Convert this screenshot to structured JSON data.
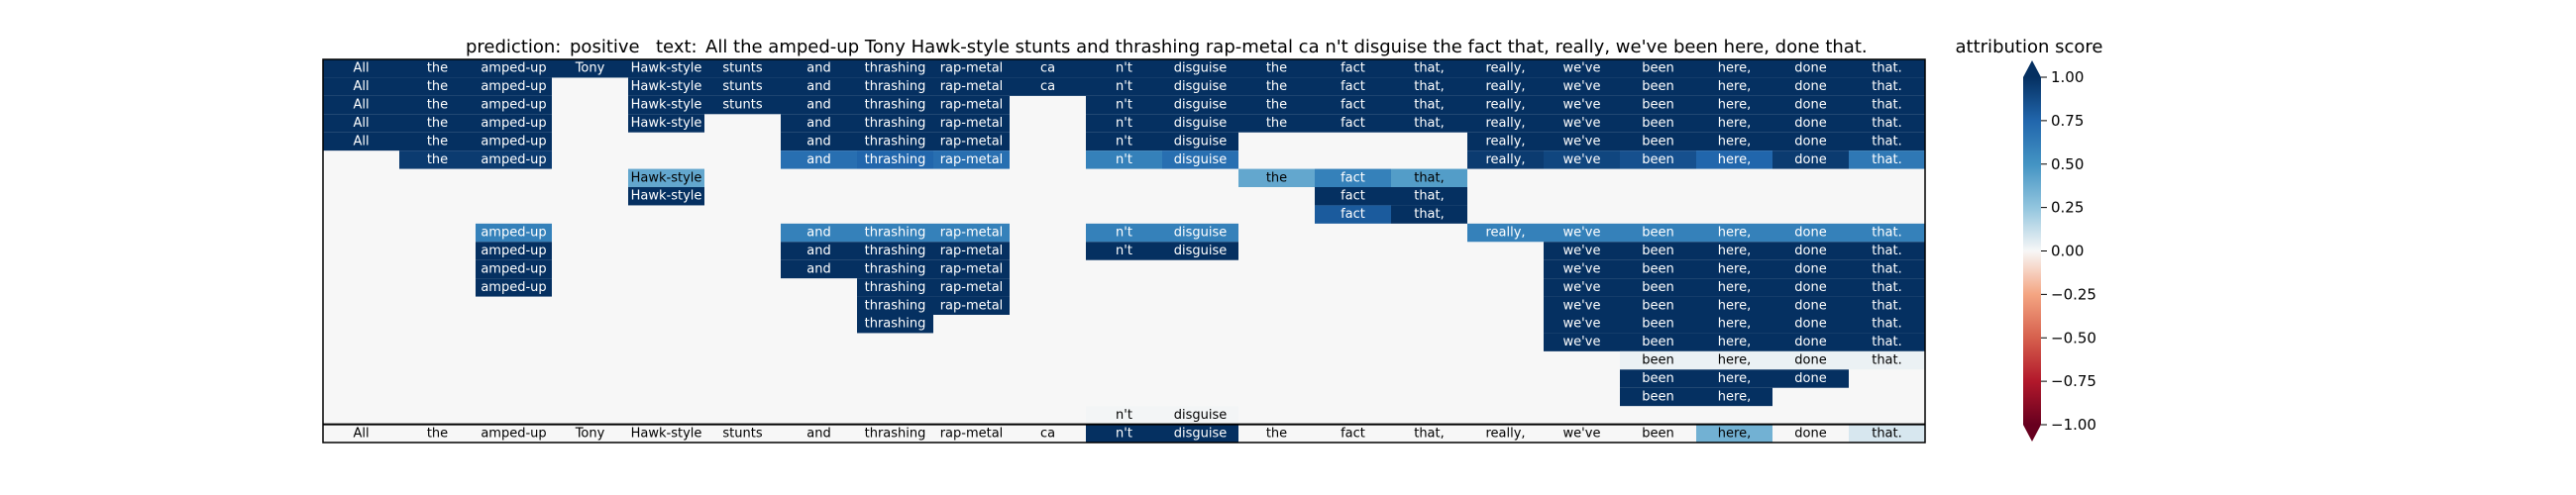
{
  "title": {
    "prediction_label": "prediction:",
    "prediction_value": "positive",
    "text_label": "text:",
    "text_value": "All the amped-up Tony Hawk-style stunts and thrashing rap-metal ca n't disguise the fact that, really, we've been here, done that."
  },
  "colorbar": {
    "label": "attribution score",
    "ticks": [
      "1.00",
      "0.75",
      "0.50",
      "0.25",
      "0.00",
      "−0.25",
      "−0.50",
      "−0.75",
      "−1.00"
    ],
    "vmin": -1,
    "vmax": 1,
    "extend": "both",
    "colormap": "RdBu"
  },
  "chart_data": {
    "type": "heatmap",
    "tokens": [
      "All",
      "the",
      "amped-up",
      "Tony",
      "Hawk-style",
      "stunts",
      "and",
      "thrashing",
      "rap-metal",
      "ca",
      "n't",
      "disguise",
      "the",
      "fact",
      "that,",
      "really,",
      "we've",
      "been",
      "here,",
      "done",
      "that."
    ],
    "rows": [
      [
        1,
        1,
        1,
        1,
        1,
        1,
        1,
        1,
        1,
        1,
        1,
        1,
        1,
        1,
        1,
        1,
        1,
        1,
        1,
        1,
        1
      ],
      [
        1,
        1,
        1,
        0,
        1,
        1,
        1,
        1,
        1,
        1,
        1,
        1,
        1,
        1,
        1,
        1,
        1,
        1,
        1,
        1,
        1
      ],
      [
        1,
        1,
        1,
        0,
        1,
        1,
        1,
        1,
        1,
        0,
        1,
        1,
        1,
        1,
        1,
        1,
        1,
        1,
        1,
        1,
        1
      ],
      [
        1,
        1,
        1,
        0,
        1,
        0,
        1,
        1,
        1,
        0,
        1,
        1,
        1,
        1,
        1,
        1,
        1,
        1,
        1,
        1,
        1
      ],
      [
        1,
        1,
        1,
        0,
        0,
        0,
        1,
        1,
        1,
        0,
        1,
        1,
        0,
        0,
        0,
        1,
        1,
        1,
        1,
        1,
        1
      ],
      [
        0,
        0.95,
        0.95,
        0,
        0,
        0,
        0.7,
        0.75,
        0.7,
        0,
        0.6,
        0.7,
        0,
        0,
        0,
        0.95,
        0.9,
        0.85,
        0.75,
        0.95,
        0.65
      ],
      [
        0,
        0,
        0,
        0,
        0.4,
        0,
        0,
        0,
        0,
        0,
        0,
        0,
        0.4,
        0.6,
        0.45,
        0,
        0,
        0,
        0,
        0,
        0
      ],
      [
        0,
        0,
        0,
        0,
        1,
        0,
        0,
        0,
        0,
        0,
        0,
        0,
        0,
        1,
        1,
        0,
        0,
        0,
        0,
        0,
        0
      ],
      [
        0,
        0,
        0,
        0,
        0,
        0,
        0,
        0,
        0,
        0,
        0,
        0,
        0,
        0.8,
        1,
        0,
        0,
        0,
        0,
        0,
        0
      ],
      [
        0,
        0,
        0.6,
        0,
        0,
        0,
        0.6,
        0.6,
        0.6,
        0,
        0.6,
        0.6,
        0,
        0,
        0,
        0.6,
        0.6,
        0.6,
        0.6,
        0.6,
        0.6
      ],
      [
        0,
        0,
        1,
        0,
        0,
        0,
        1,
        1,
        1,
        0,
        1,
        1,
        0,
        0,
        0,
        0,
        1,
        1,
        1,
        1,
        1
      ],
      [
        0,
        0,
        1,
        0,
        0,
        0,
        1,
        1,
        1,
        0,
        0,
        0,
        0,
        0,
        0,
        0,
        1,
        1,
        1,
        1,
        1
      ],
      [
        0,
        0,
        1,
        0,
        0,
        0,
        0,
        1,
        1,
        0,
        0,
        0,
        0,
        0,
        0,
        0,
        1,
        1,
        1,
        1,
        1
      ],
      [
        0,
        0,
        0,
        0,
        0,
        0,
        0,
        1,
        1,
        0,
        0,
        0,
        0,
        0,
        0,
        0,
        1,
        1,
        1,
        1,
        1
      ],
      [
        0,
        0,
        0,
        0,
        0,
        0,
        0,
        1,
        0,
        0,
        0,
        0,
        0,
        0,
        0,
        0,
        1,
        1,
        1,
        1,
        1
      ],
      [
        0,
        0,
        0,
        0,
        0,
        0,
        0,
        0,
        0,
        0,
        0,
        0,
        0,
        0,
        0,
        0,
        1,
        1,
        1,
        1,
        1
      ],
      [
        0,
        0,
        0,
        0,
        0,
        0,
        0,
        0,
        0,
        0,
        0,
        0,
        0,
        0,
        0,
        0,
        0,
        0.03,
        0.03,
        0.03,
        0.03
      ],
      [
        0,
        0,
        0,
        0,
        0,
        0,
        0,
        0,
        0,
        0,
        0,
        0,
        0,
        0,
        0,
        0,
        0,
        1,
        1,
        1,
        0
      ],
      [
        0,
        0,
        0,
        0,
        0,
        0,
        0,
        0,
        0,
        0,
        0,
        0,
        0,
        0,
        0,
        0,
        0,
        1,
        1,
        0,
        0
      ],
      [
        0,
        0,
        0,
        0,
        0,
        0,
        0,
        0,
        0,
        0,
        0.01,
        0.01,
        0,
        0,
        0,
        0,
        0,
        0,
        0,
        0,
        0
      ]
    ],
    "shown": [
      [
        1,
        1,
        1,
        1,
        1,
        1,
        1,
        1,
        1,
        1,
        1,
        1,
        1,
        1,
        1,
        1,
        1,
        1,
        1,
        1,
        1
      ],
      [
        1,
        1,
        1,
        0,
        1,
        1,
        1,
        1,
        1,
        1,
        1,
        1,
        1,
        1,
        1,
        1,
        1,
        1,
        1,
        1,
        1
      ],
      [
        1,
        1,
        1,
        0,
        1,
        1,
        1,
        1,
        1,
        0,
        1,
        1,
        1,
        1,
        1,
        1,
        1,
        1,
        1,
        1,
        1
      ],
      [
        1,
        1,
        1,
        0,
        1,
        0,
        1,
        1,
        1,
        0,
        1,
        1,
        1,
        1,
        1,
        1,
        1,
        1,
        1,
        1,
        1
      ],
      [
        1,
        1,
        1,
        0,
        0,
        0,
        1,
        1,
        1,
        0,
        1,
        1,
        0,
        0,
        0,
        1,
        1,
        1,
        1,
        1,
        1
      ],
      [
        0,
        1,
        1,
        0,
        0,
        0,
        1,
        1,
        1,
        0,
        1,
        1,
        0,
        0,
        0,
        1,
        1,
        1,
        1,
        1,
        1
      ],
      [
        0,
        0,
        0,
        0,
        1,
        0,
        0,
        0,
        0,
        0,
        0,
        0,
        1,
        1,
        1,
        0,
        0,
        0,
        0,
        0,
        0
      ],
      [
        0,
        0,
        0,
        0,
        1,
        0,
        0,
        0,
        0,
        0,
        0,
        0,
        0,
        1,
        1,
        0,
        0,
        0,
        0,
        0,
        0
      ],
      [
        0,
        0,
        0,
        0,
        0,
        0,
        0,
        0,
        0,
        0,
        0,
        0,
        0,
        1,
        1,
        0,
        0,
        0,
        0,
        0,
        0
      ],
      [
        0,
        0,
        1,
        0,
        0,
        0,
        1,
        1,
        1,
        0,
        1,
        1,
        0,
        0,
        0,
        1,
        1,
        1,
        1,
        1,
        1
      ],
      [
        0,
        0,
        1,
        0,
        0,
        0,
        1,
        1,
        1,
        0,
        1,
        1,
        0,
        0,
        0,
        0,
        1,
        1,
        1,
        1,
        1
      ],
      [
        0,
        0,
        1,
        0,
        0,
        0,
        1,
        1,
        1,
        0,
        0,
        0,
        0,
        0,
        0,
        0,
        1,
        1,
        1,
        1,
        1
      ],
      [
        0,
        0,
        1,
        0,
        0,
        0,
        0,
        1,
        1,
        0,
        0,
        0,
        0,
        0,
        0,
        0,
        1,
        1,
        1,
        1,
        1
      ],
      [
        0,
        0,
        0,
        0,
        0,
        0,
        0,
        1,
        1,
        0,
        0,
        0,
        0,
        0,
        0,
        0,
        1,
        1,
        1,
        1,
        1
      ],
      [
        0,
        0,
        0,
        0,
        0,
        0,
        0,
        1,
        0,
        0,
        0,
        0,
        0,
        0,
        0,
        0,
        1,
        1,
        1,
        1,
        1
      ],
      [
        0,
        0,
        0,
        0,
        0,
        0,
        0,
        0,
        0,
        0,
        0,
        0,
        0,
        0,
        0,
        0,
        1,
        1,
        1,
        1,
        1
      ],
      [
        0,
        0,
        0,
        0,
        0,
        0,
        0,
        0,
        0,
        0,
        0,
        0,
        0,
        0,
        0,
        0,
        0,
        1,
        1,
        1,
        1
      ],
      [
        0,
        0,
        0,
        0,
        0,
        0,
        0,
        0,
        0,
        0,
        0,
        0,
        0,
        0,
        0,
        0,
        0,
        1,
        1,
        1,
        0
      ],
      [
        0,
        0,
        0,
        0,
        0,
        0,
        0,
        0,
        0,
        0,
        0,
        0,
        0,
        0,
        0,
        0,
        0,
        1,
        1,
        0,
        0
      ],
      [
        0,
        0,
        0,
        0,
        0,
        0,
        0,
        0,
        0,
        0,
        1,
        1,
        0,
        0,
        0,
        0,
        0,
        0,
        0,
        0,
        0
      ]
    ],
    "final_row": [
      0,
      0,
      0,
      0,
      0,
      0,
      0,
      0,
      0,
      0,
      1,
      1,
      0,
      0,
      0,
      0,
      0,
      0,
      0.35,
      0,
      0.08
    ]
  }
}
